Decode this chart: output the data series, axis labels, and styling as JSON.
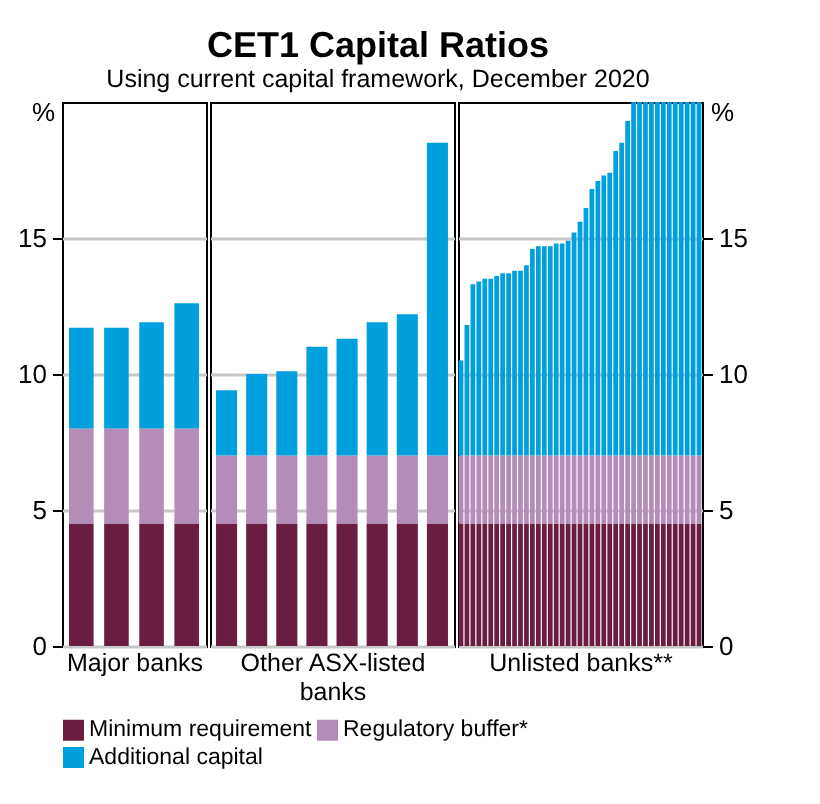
{
  "chart_data": [
    {
      "type": "other",
      "title": "CET1 Capital Ratios",
      "subtitle": "Using current capital framework, December 2020"
    },
    {
      "type": "bar",
      "xlabel": "Major banks",
      "ylabel": "%",
      "stacked": true,
      "categories": [
        null,
        null,
        null,
        null
      ],
      "ylim": [
        0,
        20
      ],
      "yticks": [
        0,
        5,
        10,
        15
      ],
      "grid": "y",
      "legend": "bottom",
      "tick_labels": "y",
      "series": [
        {
          "name": "Minimum requirement",
          "color": "#6b1c41",
          "values": [
            4.5,
            4.5,
            4.5,
            4.5
          ]
        },
        {
          "name": "Regulatory buffer*",
          "color": "#b48cb8",
          "values": [
            3.5,
            3.5,
            3.5,
            3.5
          ]
        },
        {
          "name": "Additional capital",
          "color": "#00a0df",
          "values": [
            3.7,
            3.7,
            3.9,
            4.6
          ]
        }
      ]
    },
    {
      "type": "bar",
      "xlabel": "Other ASX-listed banks",
      "stacked": true,
      "categories": [
        null,
        null,
        null,
        null,
        null,
        null,
        null,
        null
      ],
      "ylim": [
        0,
        20
      ],
      "yticks": [
        0,
        5,
        10,
        15
      ],
      "grid": "y",
      "tick_labels": false,
      "series": [
        {
          "color": "#6b1c41",
          "values": [
            4.5,
            4.5,
            4.5,
            4.5,
            4.5,
            4.5,
            4.5,
            4.5
          ]
        },
        {
          "color": "#b48cb8",
          "values": [
            2.5,
            2.5,
            2.5,
            2.5,
            2.5,
            2.5,
            2.5,
            2.5
          ]
        },
        {
          "color": "#00a0df",
          "values": [
            2.4,
            3.0,
            3.1,
            4.0,
            4.3,
            4.9,
            5.2,
            11.5
          ]
        }
      ]
    },
    {
      "type": "bar",
      "xlabel": "Unlisted banks**",
      "ylabel": "%",
      "stacked": true,
      "categories": [
        null,
        null,
        null,
        null,
        null,
        null,
        null,
        null,
        null,
        null,
        null,
        null,
        null,
        null,
        null,
        null,
        null,
        null,
        null,
        null,
        null,
        null,
        null,
        null,
        null,
        null,
        null,
        null,
        null,
        null,
        null,
        null,
        null,
        null,
        null,
        null,
        null,
        null,
        null,
        null,
        null
      ],
      "ylim": [
        0,
        20
      ],
      "yticks": [
        0,
        5,
        10,
        15
      ],
      "grid": "y",
      "tick_labels": "y",
      "series": [
        {
          "color": "#6b1c41",
          "values": [
            4.5,
            4.5,
            4.5,
            4.5,
            4.5,
            4.5,
            4.5,
            4.5,
            4.5,
            4.5,
            4.5,
            4.5,
            4.5,
            4.5,
            4.5,
            4.5,
            4.5,
            4.5,
            4.5,
            4.5,
            4.5,
            4.5,
            4.5,
            4.5,
            4.5,
            4.5,
            4.5,
            4.5,
            4.5,
            4.5,
            4.5,
            4.5,
            4.5,
            4.5,
            4.5,
            4.5,
            4.5,
            4.5,
            4.5,
            4.5,
            4.5
          ]
        },
        {
          "color": "#b48cb8",
          "values": [
            2.5,
            2.5,
            2.5,
            2.5,
            2.5,
            2.5,
            2.5,
            2.5,
            2.5,
            2.5,
            2.5,
            2.5,
            2.5,
            2.5,
            2.5,
            2.5,
            2.5,
            2.5,
            2.5,
            2.5,
            2.5,
            2.5,
            2.5,
            2.5,
            2.5,
            2.5,
            2.5,
            2.5,
            2.5,
            2.5,
            2.5,
            2.5,
            2.5,
            2.5,
            2.5,
            2.5,
            2.5,
            2.5,
            2.5,
            2.5,
            2.5
          ]
        },
        {
          "color": "#00a0df",
          "values": [
            3.5,
            4.8,
            6.3,
            6.4,
            6.5,
            6.5,
            6.6,
            6.7,
            6.7,
            6.8,
            6.8,
            7.0,
            7.6,
            7.7,
            7.7,
            7.7,
            7.8,
            7.8,
            7.9,
            8.2,
            8.6,
            9.1,
            9.8,
            10.1,
            10.3,
            10.4,
            11.2,
            11.5,
            12.3,
            13,
            13,
            13,
            13,
            13,
            13,
            13,
            13,
            13,
            13,
            13,
            13
          ]
        }
      ]
    }
  ]
}
